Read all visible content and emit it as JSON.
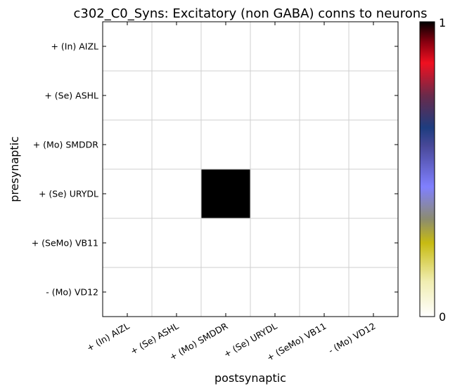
{
  "chart_data": {
    "type": "heatmap",
    "title": "c302_C0_Syns: Excitatory (non GABA) conns to neurons",
    "xlabel": "postsynaptic",
    "ylabel": "presynaptic",
    "x_categories": [
      "+ (In) AIZL",
      "+ (Se) ASHL",
      "+ (Mo) SMDDR",
      "+ (Se) URYDL",
      "+ (SeMo) VB11",
      "- (Mo) VD12"
    ],
    "y_categories": [
      "+ (In) AIZL",
      "+ (Se) ASHL",
      "+ (Mo) SMDDR",
      "+ (Se) URYDL",
      "+ (SeMo) VB11",
      "- (Mo) VD12"
    ],
    "values": [
      [
        0,
        0,
        0,
        0,
        0,
        0
      ],
      [
        0,
        0,
        0,
        0,
        0,
        0
      ],
      [
        0,
        0,
        0,
        0,
        0,
        0
      ],
      [
        0,
        0,
        1,
        0,
        0,
        0
      ],
      [
        0,
        0,
        0,
        0,
        0,
        0
      ],
      [
        0,
        0,
        0,
        0,
        0,
        0
      ]
    ],
    "colorbar": {
      "min": 0,
      "max": 1,
      "min_label": "0",
      "max_label": "1"
    },
    "grid": true
  }
}
